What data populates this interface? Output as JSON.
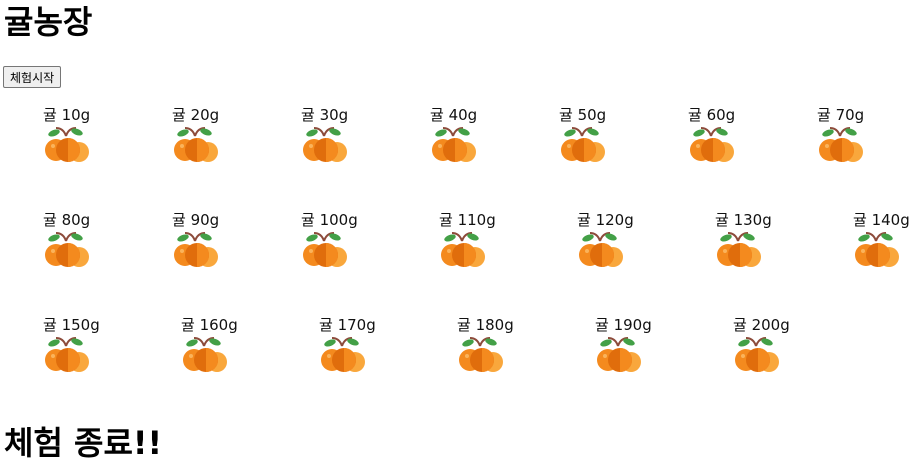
{
  "page": {
    "title": "귤농장",
    "start_button": "체험시작",
    "ending": "체험 종료!!"
  },
  "icon": "tangerine-icon",
  "colors": {
    "orange": "#f48a1e",
    "orange_dark": "#e06d0c",
    "orange_light": "#f9a73c",
    "leaf": "#43a047",
    "stem": "#8d4b3b"
  },
  "rows": [
    [
      {
        "label": "귤 10g"
      },
      {
        "label": "귤 20g"
      },
      {
        "label": "귤 30g"
      },
      {
        "label": "귤 40g"
      },
      {
        "label": "귤 50g"
      },
      {
        "label": "귤 60g"
      },
      {
        "label": "귤 70g"
      }
    ],
    [
      {
        "label": "귤 80g"
      },
      {
        "label": "귤 90g"
      },
      {
        "label": "귤 100g"
      },
      {
        "label": "귤 110g"
      },
      {
        "label": "귤 120g"
      },
      {
        "label": "귤 130g"
      },
      {
        "label": "귤 140g"
      }
    ],
    [
      {
        "label": "귤 150g"
      },
      {
        "label": "귤 160g"
      },
      {
        "label": "귤 170g"
      },
      {
        "label": "귤 180g"
      },
      {
        "label": "귤 190g"
      },
      {
        "label": "귤 200g"
      }
    ]
  ]
}
